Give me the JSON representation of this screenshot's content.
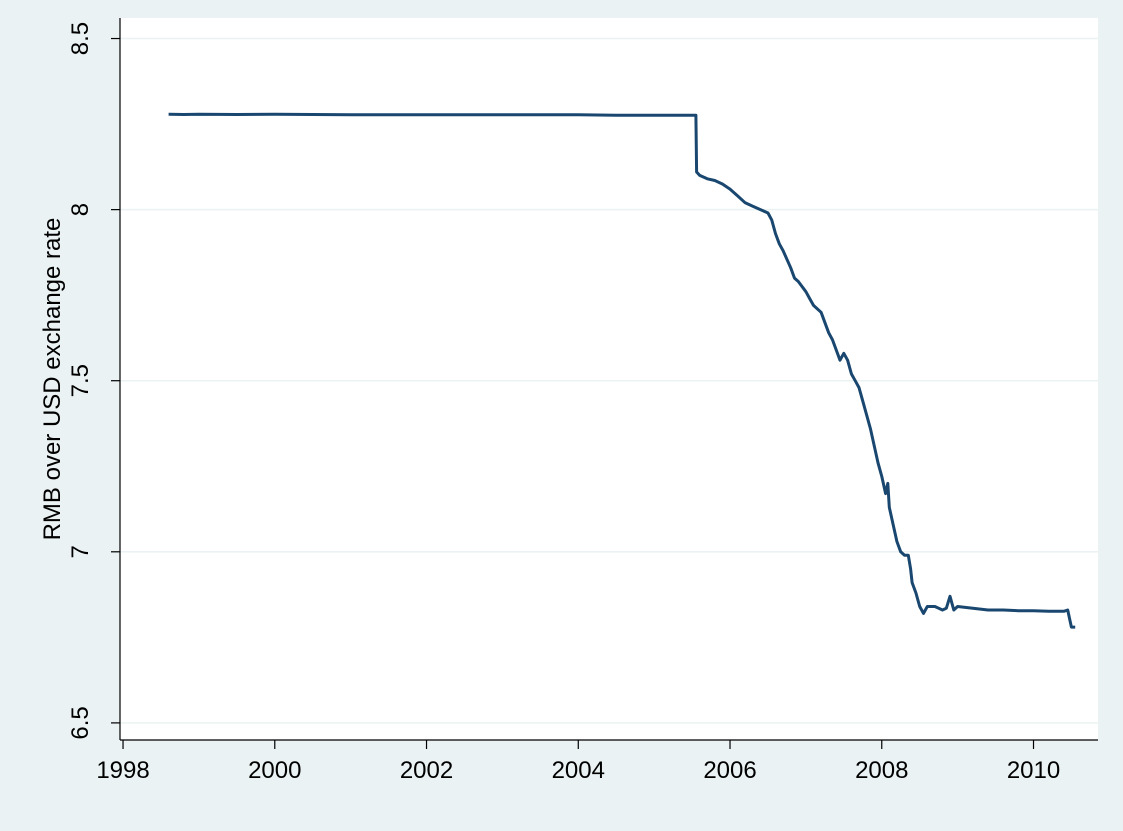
{
  "chart_data": {
    "type": "line",
    "title": "",
    "xlabel": "",
    "ylabel": "RMB over USD exchange rate",
    "xlim": [
      1997.96,
      2010.85
    ],
    "ylim": [
      6.45,
      8.56
    ],
    "x_ticks": [
      1998,
      2000,
      2002,
      2004,
      2006,
      2008,
      2010
    ],
    "x_tick_labels": [
      "1998",
      "2000",
      "2002",
      "2004",
      "2006",
      "2008",
      "2010"
    ],
    "y_ticks": [
      6.5,
      7,
      7.5,
      8,
      8.5
    ],
    "y_tick_labels": [
      "6.5",
      "7",
      "7.5",
      "8",
      "8.5"
    ],
    "grid": true,
    "legend": "none",
    "colors": {
      "background": "#eaf2f3",
      "plot_bg": "#ffffff",
      "grid": "#eaf2f3",
      "line": "#1a476f"
    },
    "series": [
      {
        "x": [
          1998.6,
          1998.8,
          1999.0,
          1999.5,
          2000.0,
          2000.5,
          2001.0,
          2001.5,
          2002.0,
          2002.5,
          2003.0,
          2003.5,
          2004.0,
          2004.5,
          2005.0,
          2005.55,
          2005.56,
          2005.6,
          2005.7,
          2005.8,
          2005.9,
          2006.0,
          2006.1,
          2006.2,
          2006.3,
          2006.4,
          2006.5,
          2006.55,
          2006.6,
          2006.65,
          2006.7,
          2006.8,
          2006.85,
          2006.9,
          2007.0,
          2007.05,
          2007.1,
          2007.2,
          2007.3,
          2007.35,
          2007.4,
          2007.45,
          2007.5,
          2007.55,
          2007.6,
          2007.65,
          2007.7,
          2007.75,
          2007.8,
          2007.85,
          2007.9,
          2007.95,
          2008.0,
          2008.05,
          2008.08,
          2008.1,
          2008.15,
          2008.2,
          2008.25,
          2008.3,
          2008.35,
          2008.38,
          2008.4,
          2008.45,
          2008.5,
          2008.55,
          2008.6,
          2008.7,
          2008.8,
          2008.85,
          2008.9,
          2008.95,
          2009.0,
          2009.2,
          2009.4,
          2009.6,
          2009.8,
          2010.0,
          2010.2,
          2010.4,
          2010.45,
          2010.48,
          2010.5,
          2010.55
        ],
        "values": [
          8.279,
          8.278,
          8.279,
          8.278,
          8.279,
          8.278,
          8.277,
          8.277,
          8.277,
          8.277,
          8.277,
          8.277,
          8.277,
          8.276,
          8.276,
          8.276,
          8.11,
          8.1,
          8.09,
          8.085,
          8.075,
          8.06,
          8.04,
          8.02,
          8.01,
          8.0,
          7.99,
          7.97,
          7.93,
          7.9,
          7.88,
          7.83,
          7.8,
          7.79,
          7.76,
          7.74,
          7.72,
          7.7,
          7.64,
          7.62,
          7.59,
          7.56,
          7.58,
          7.56,
          7.52,
          7.5,
          7.48,
          7.44,
          7.4,
          7.36,
          7.31,
          7.26,
          7.22,
          7.17,
          7.2,
          7.13,
          7.08,
          7.03,
          7.0,
          6.99,
          6.99,
          6.95,
          6.91,
          6.88,
          6.84,
          6.82,
          6.84,
          6.84,
          6.83,
          6.835,
          6.87,
          6.83,
          6.84,
          6.835,
          6.83,
          6.83,
          6.828,
          6.828,
          6.826,
          6.826,
          6.83,
          6.8,
          6.78,
          6.78
        ]
      }
    ]
  }
}
